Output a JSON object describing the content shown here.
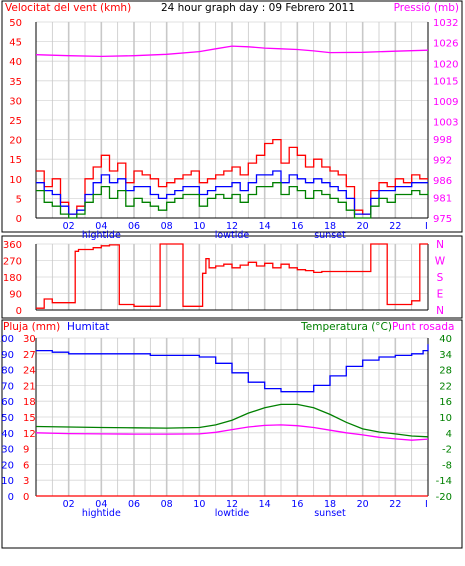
{
  "chart_data": [
    {
      "type": "line",
      "title": "24 hour graph day : 09 Febrero 2011",
      "ylabel_left": "Velocitat del vent (kmh)",
      "ylabel_right": "Pressió (mb)",
      "ylim_left": [
        0,
        50
      ],
      "yticks_left": [
        0,
        5,
        10,
        15,
        20,
        25,
        30,
        35,
        40,
        45,
        50
      ],
      "ylim_right": [
        975,
        1032
      ],
      "yticks_right": [
        975,
        981,
        986,
        992,
        998,
        1003,
        1009,
        1015,
        1020,
        1026,
        1032
      ],
      "xlim": [
        0,
        24
      ],
      "xticks": [
        {
          "x": 2,
          "label": "02"
        },
        {
          "x": 4,
          "label": "04"
        },
        {
          "x": 6,
          "label": "06"
        },
        {
          "x": 8,
          "label": "08"
        },
        {
          "x": 10,
          "label": "10"
        },
        {
          "x": 12,
          "label": "12"
        },
        {
          "x": 14,
          "label": "14"
        },
        {
          "x": 16,
          "label": "16"
        },
        {
          "x": 18,
          "label": "18"
        },
        {
          "x": 20,
          "label": "20"
        },
        {
          "x": 22,
          "label": "22"
        },
        {
          "x": 23.9,
          "label": "I"
        }
      ],
      "annotations": [
        {
          "x": 4,
          "text": "hightide"
        },
        {
          "x": 12,
          "text": "lowtide"
        },
        {
          "x": 18,
          "text": "sunset"
        }
      ],
      "grid": true,
      "series": [
        {
          "color": "#ff00ff",
          "axis": "right",
          "x": [
            0,
            2,
            4,
            6,
            8,
            10,
            11,
            12,
            13,
            14,
            15,
            16,
            17,
            18,
            20,
            22,
            24
          ],
          "values": [
            1022.5,
            1022.2,
            1022.0,
            1022.2,
            1022.6,
            1023.4,
            1024.2,
            1025.0,
            1024.8,
            1024.4,
            1024.2,
            1024.0,
            1023.6,
            1023.1,
            1023.2,
            1023.5,
            1023.8
          ]
        },
        {
          "color": "#ff0000",
          "axis": "left",
          "x": [
            0,
            0.5,
            1,
            1.5,
            2,
            2.5,
            3,
            3.5,
            4,
            4.5,
            5,
            5.5,
            6,
            6.5,
            7,
            7.5,
            8,
            8.5,
            9,
            9.5,
            10,
            10.5,
            11,
            11.5,
            12,
            12.5,
            13,
            13.5,
            14,
            14.5,
            15,
            15.5,
            16,
            16.5,
            17,
            17.5,
            18,
            18.5,
            19,
            19.5,
            20,
            20.5,
            21,
            21.5,
            22,
            22.5,
            23,
            23.5,
            24
          ],
          "values": [
            12,
            8,
            10,
            4,
            1,
            3,
            10,
            13,
            16,
            12,
            14,
            9,
            12,
            11,
            10,
            8,
            9,
            10,
            11,
            12,
            9,
            10,
            11,
            12,
            13,
            11,
            14,
            16,
            19,
            20,
            14,
            18,
            16,
            13,
            15,
            13,
            12,
            11,
            8,
            2,
            1,
            7,
            9,
            8,
            10,
            9,
            11,
            10,
            10
          ]
        },
        {
          "color": "#0000ff",
          "axis": "left",
          "x": [
            0,
            0.5,
            1,
            1.5,
            2,
            2.5,
            3,
            3.5,
            4,
            4.5,
            5,
            5.5,
            6,
            6.5,
            7,
            7.5,
            8,
            8.5,
            9,
            9.5,
            10,
            10.5,
            11,
            11.5,
            12,
            12.5,
            13,
            13.5,
            14,
            14.5,
            15,
            15.5,
            16,
            16.5,
            17,
            17.5,
            18,
            18.5,
            19,
            19.5,
            20,
            20.5,
            21,
            21.5,
            22,
            22.5,
            23,
            23.5,
            24
          ],
          "values": [
            9,
            7,
            6,
            3,
            1,
            2,
            6,
            9,
            11,
            9,
            10,
            7,
            8,
            8,
            6,
            5,
            6,
            7,
            8,
            8,
            6,
            7,
            8,
            8,
            9,
            7,
            9,
            11,
            11,
            12,
            9,
            11,
            10,
            9,
            10,
            9,
            8,
            7,
            5,
            1,
            1,
            5,
            7,
            7,
            8,
            8,
            9,
            9,
            9
          ]
        },
        {
          "color": "#008000",
          "axis": "left",
          "x": [
            0,
            0.5,
            1,
            1.5,
            2,
            2.5,
            3,
            3.5,
            4,
            4.5,
            5,
            5.5,
            6,
            6.5,
            7,
            7.5,
            8,
            8.5,
            9,
            9.5,
            10,
            10.5,
            11,
            11.5,
            12,
            12.5,
            13,
            13.5,
            14,
            14.5,
            15,
            15.5,
            16,
            16.5,
            17,
            17.5,
            18,
            18.5,
            19,
            19.5,
            20,
            20.5,
            21,
            21.5,
            22,
            22.5,
            23,
            23.5,
            24
          ],
          "values": [
            7,
            4,
            3,
            1,
            0,
            1,
            4,
            6,
            8,
            5,
            7,
            3,
            5,
            4,
            3,
            2,
            4,
            5,
            6,
            6,
            3,
            5,
            6,
            5,
            6,
            4,
            6,
            8,
            8,
            9,
            6,
            8,
            7,
            5,
            7,
            6,
            5,
            4,
            2,
            0,
            0,
            3,
            5,
            4,
            6,
            6,
            7,
            6,
            7
          ]
        }
      ]
    },
    {
      "type": "line",
      "ylabel_left": "",
      "ylim_left": [
        0,
        360
      ],
      "yticks_left": [
        0,
        90,
        180,
        270,
        360
      ],
      "right_axis_labels": [
        {
          "value": 360,
          "text": "N"
        },
        {
          "value": 270,
          "text": "W"
        },
        {
          "value": 180,
          "text": "S"
        },
        {
          "value": 90,
          "text": "E"
        },
        {
          "value": 0,
          "text": "N"
        }
      ],
      "xlim": [
        0,
        24
      ],
      "grid": true,
      "series": [
        {
          "color": "#ff0000",
          "x": [
            0,
            0.3,
            0.5,
            0.7,
            1.0,
            1.5,
            2.2,
            2.4,
            2.6,
            3.0,
            3.5,
            4.0,
            4.5,
            5.0,
            5.1,
            5.6,
            6.0,
            6.5,
            7.0,
            7.4,
            7.6,
            8.0,
            8.5,
            9.0,
            10.0,
            10.2,
            10.4,
            10.6,
            11.0,
            11.5,
            12.0,
            12.5,
            13.0,
            13.5,
            14.0,
            14.5,
            15.0,
            15.5,
            16.0,
            16.5,
            17.0,
            17.5,
            18.0,
            19.0,
            20.0,
            20.5,
            21.0,
            21.5,
            22.0,
            22.5,
            23.0,
            23.5,
            24
          ],
          "values": [
            10,
            10,
            60,
            60,
            40,
            40,
            40,
            320,
            330,
            330,
            340,
            350,
            355,
            355,
            30,
            30,
            20,
            20,
            20,
            20,
            360,
            360,
            360,
            20,
            20,
            200,
            280,
            230,
            240,
            250,
            230,
            245,
            260,
            240,
            255,
            230,
            250,
            230,
            220,
            215,
            205,
            210,
            210,
            210,
            210,
            360,
            360,
            30,
            30,
            30,
            50,
            360,
            360
          ]
        }
      ]
    },
    {
      "type": "line",
      "ylabel_left": "Pluja (mm)",
      "ylabel_left2": "Humitat",
      "ylabel_right": "Temperatura (°C)",
      "ylabel_right2": "Punt rosada",
      "ylim_humidity": [
        0,
        100
      ],
      "yticks_humidity": [
        0,
        10,
        20,
        30,
        40,
        50,
        60,
        70,
        80,
        90,
        100
      ],
      "yticks_rain": [
        0,
        3,
        6,
        9,
        12,
        15,
        18,
        21,
        24,
        27,
        30
      ],
      "ylim_temperature": [
        -20,
        40
      ],
      "yticks_temperature": [
        -20,
        -14,
        -8,
        -2,
        4,
        10,
        16,
        22,
        28,
        34,
        40
      ],
      "xlim": [
        0,
        24
      ],
      "xticks": [
        {
          "x": 2,
          "label": "02"
        },
        {
          "x": 4,
          "label": "04"
        },
        {
          "x": 6,
          "label": "06"
        },
        {
          "x": 8,
          "label": "08"
        },
        {
          "x": 10,
          "label": "10"
        },
        {
          "x": 12,
          "label": "12"
        },
        {
          "x": 14,
          "label": "14"
        },
        {
          "x": 16,
          "label": "16"
        },
        {
          "x": 18,
          "label": "18"
        },
        {
          "x": 20,
          "label": "20"
        },
        {
          "x": 22,
          "label": "22"
        },
        {
          "x": 23.9,
          "label": "I"
        }
      ],
      "annotations": [
        {
          "x": 4,
          "text": "hightide"
        },
        {
          "x": 12,
          "text": "lowtide"
        },
        {
          "x": 18,
          "text": "sunset"
        }
      ],
      "grid": true,
      "series": [
        {
          "color": "#0000ff",
          "axis": "humidity",
          "x": [
            0,
            1,
            2,
            3,
            4,
            5,
            6,
            7,
            8,
            9,
            10,
            11,
            12,
            13,
            14,
            15,
            16,
            17,
            18,
            19,
            20,
            21,
            22,
            23,
            23.7,
            24
          ],
          "values": [
            92,
            91,
            90,
            90,
            90,
            90,
            90,
            89,
            89,
            89,
            88,
            84,
            78,
            72,
            68,
            66,
            66,
            70,
            76,
            82,
            86,
            88,
            89,
            90,
            92,
            96
          ]
        },
        {
          "color": "#008000",
          "axis": "temperature",
          "x": [
            0,
            2,
            4,
            6,
            8,
            10,
            11,
            12,
            13,
            14,
            15,
            16,
            17,
            18,
            19,
            20,
            21,
            22,
            23,
            24
          ],
          "values": [
            6.4,
            6.2,
            6.0,
            5.9,
            5.8,
            6.0,
            7.0,
            8.8,
            11.5,
            13.5,
            14.8,
            14.8,
            13.5,
            11.0,
            8.0,
            5.5,
            4.3,
            3.6,
            2.8,
            2.5
          ]
        },
        {
          "color": "#ff00ff",
          "axis": "temperature",
          "x": [
            0,
            2,
            4,
            6,
            8,
            10,
            11,
            12,
            13,
            14,
            15,
            16,
            17,
            18,
            19,
            20,
            21,
            22,
            23,
            24
          ],
          "values": [
            4.0,
            3.7,
            3.6,
            3.5,
            3.5,
            3.6,
            4.2,
            5.2,
            6.2,
            6.8,
            7.0,
            6.7,
            6.0,
            5.0,
            4.0,
            3.2,
            2.3,
            1.7,
            1.2,
            1.6
          ]
        },
        {
          "color": "#ff0000",
          "axis": "rain",
          "x": [
            0,
            24
          ],
          "values": [
            0,
            0
          ]
        }
      ]
    }
  ]
}
